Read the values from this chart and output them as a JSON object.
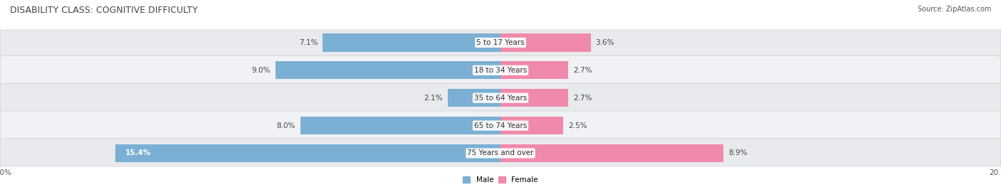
{
  "title": "DISABILITY CLASS: COGNITIVE DIFFICULTY",
  "source": "Source: ZipAtlas.com",
  "categories": [
    "5 to 17 Years",
    "18 to 34 Years",
    "35 to 64 Years",
    "65 to 74 Years",
    "75 Years and over"
  ],
  "male_values": [
    7.1,
    9.0,
    2.1,
    8.0,
    15.4
  ],
  "female_values": [
    3.6,
    2.7,
    2.7,
    2.5,
    8.9
  ],
  "male_color": "#7bafd4",
  "female_color": "#f08aaa",
  "row_bg_color_odd": "#e8eaed",
  "row_bg_color_even": "#f0f2f5",
  "max_value": 20.0,
  "title_fontsize": 9,
  "label_fontsize": 7.5,
  "tick_fontsize": 7.5,
  "source_fontsize": 7
}
